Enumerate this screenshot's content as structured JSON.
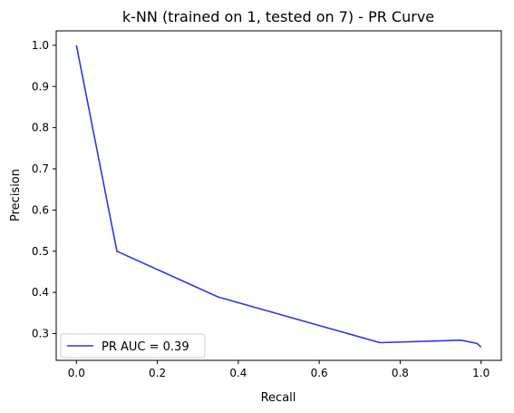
{
  "chart_data": {
    "type": "line",
    "title": "k-NN (trained on 1, tested on 7) -  PR Curve",
    "xlabel": "Recall",
    "ylabel": "Precision",
    "xlim": [
      -0.05,
      1.05
    ],
    "ylim": [
      0.235,
      1.035
    ],
    "xticks": [
      0.0,
      0.2,
      0.4,
      0.6,
      0.8,
      1.0
    ],
    "xtick_labels": [
      "0.0",
      "0.2",
      "0.4",
      "0.6",
      "0.8",
      "1.0"
    ],
    "yticks": [
      0.3,
      0.4,
      0.5,
      0.6,
      0.7,
      0.8,
      0.9,
      1.0
    ],
    "ytick_labels": [
      "0.3",
      "0.4",
      "0.5",
      "0.6",
      "0.7",
      "0.8",
      "0.9",
      "1.0"
    ],
    "grid": false,
    "legend_position": "bottom-left",
    "series": [
      {
        "name": "PR AUC = 0.39",
        "color": "#3333e6",
        "x": [
          0.0,
          0.09,
          0.1,
          0.35,
          0.75,
          0.95,
          0.99,
          1.0
        ],
        "y": [
          1.0,
          0.55,
          0.5,
          0.389,
          0.278,
          0.284,
          0.276,
          0.267
        ]
      }
    ]
  }
}
